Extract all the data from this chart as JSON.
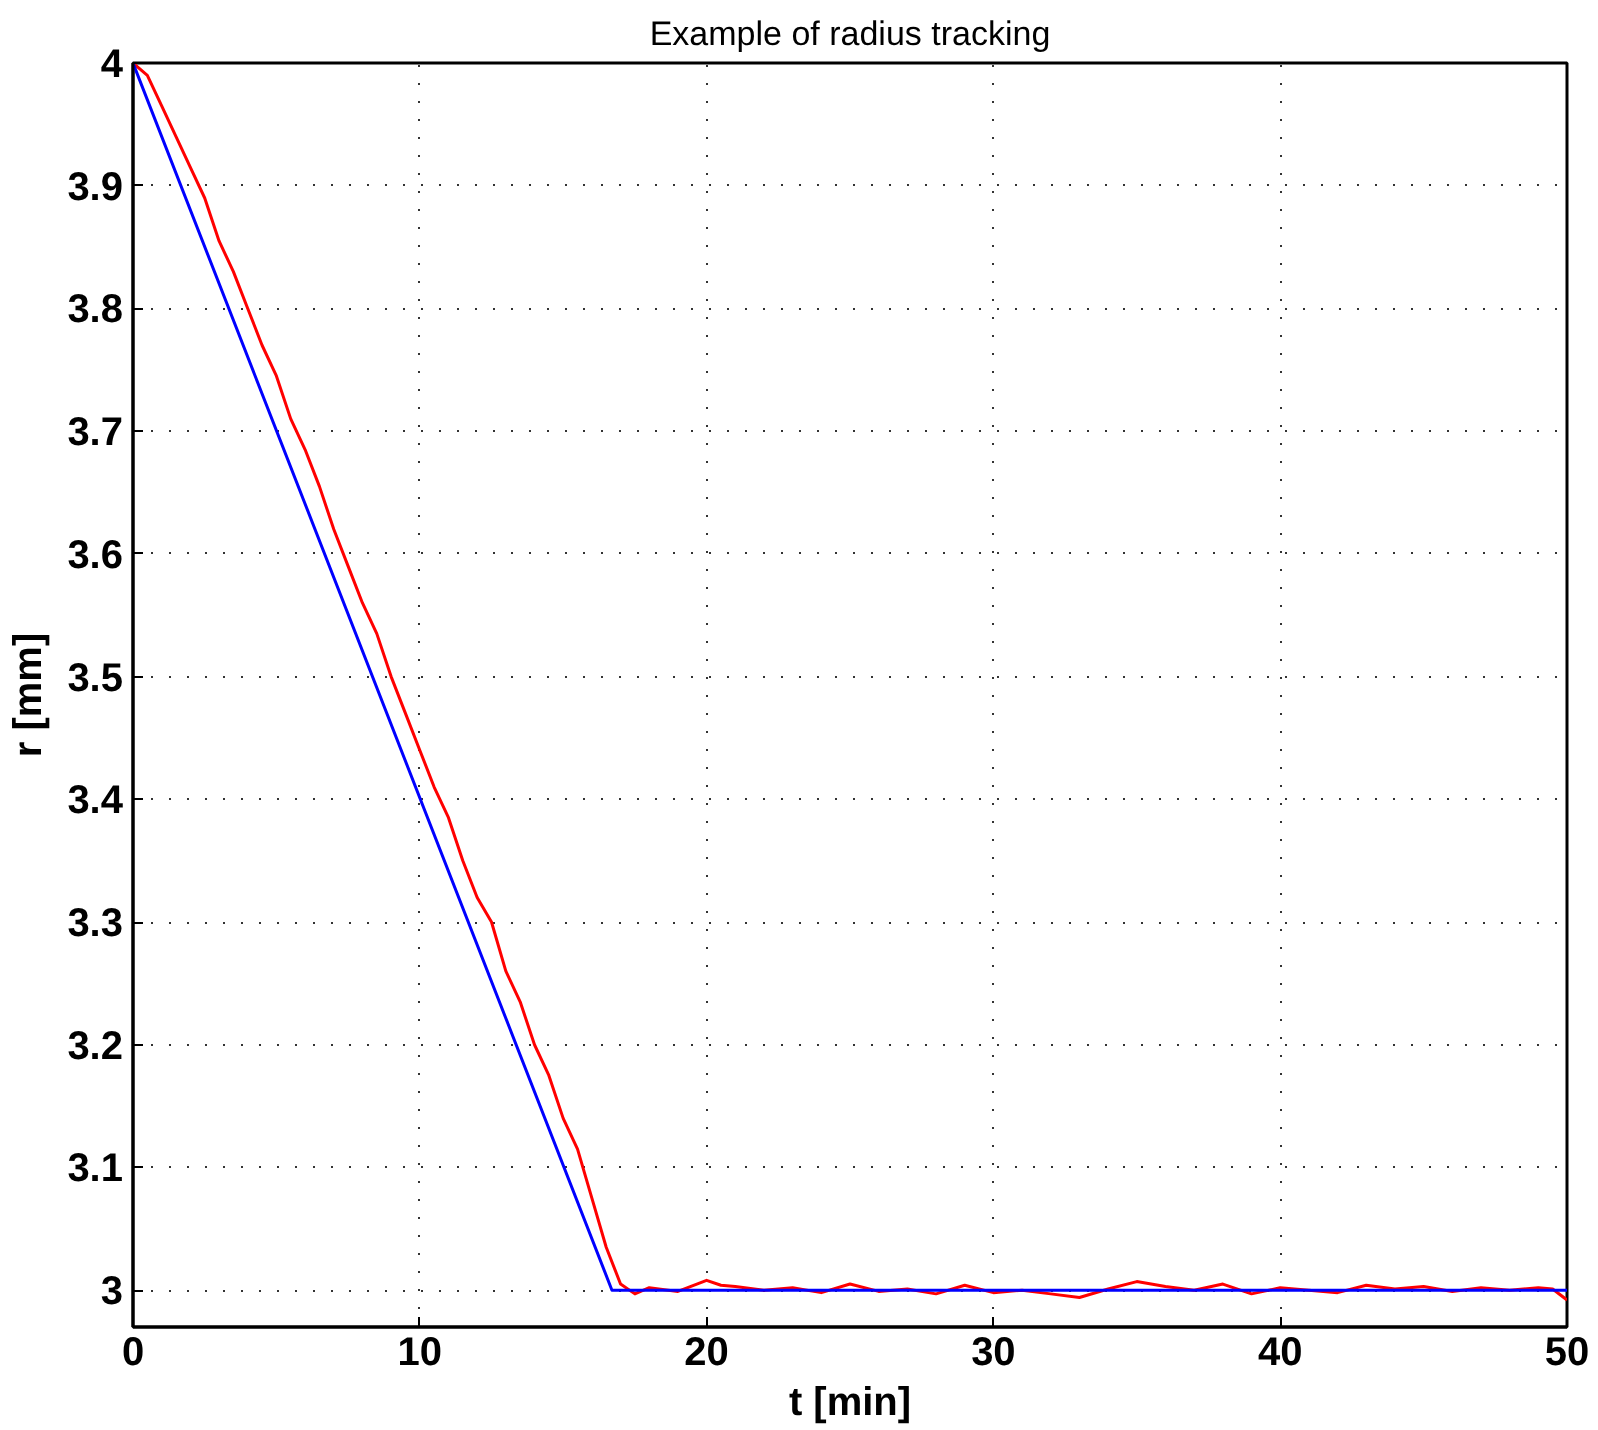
{
  "chart_data": {
    "type": "line",
    "title": "Example of radius tracking",
    "xlabel": "t [min]",
    "ylabel": "r [mm]",
    "xlim": [
      0,
      50
    ],
    "ylim": [
      2.97,
      4
    ],
    "xticks": [
      0,
      10,
      20,
      30,
      40,
      50
    ],
    "yticks": [
      3,
      3.1,
      3.2,
      3.3,
      3.4,
      3.5,
      3.6,
      3.7,
      3.8,
      3.9,
      4
    ],
    "grid": true,
    "line_style": "solid",
    "marker": "none",
    "series": [
      {
        "color": "#ff0000",
        "x": [
          0,
          0.5,
          1,
          1.5,
          2,
          2.5,
          3,
          3.5,
          4,
          4.5,
          5,
          5.5,
          6,
          6.5,
          7,
          7.5,
          8,
          8.5,
          9,
          9.5,
          10,
          10.5,
          11,
          11.5,
          12,
          12.5,
          13,
          13.5,
          14,
          14.5,
          15,
          15.5,
          16,
          16.5,
          17,
          17.5,
          18,
          19,
          20,
          20.5,
          21,
          22,
          23,
          24,
          25,
          26,
          27,
          28,
          29,
          30,
          31,
          32,
          33,
          34,
          35,
          36,
          37,
          38,
          39,
          40,
          41,
          42,
          43,
          44,
          45,
          46,
          47,
          48,
          49,
          49.5,
          50
        ],
        "values": [
          4.0,
          3.99,
          3.965,
          3.94,
          3.915,
          3.89,
          3.855,
          3.83,
          3.8,
          3.77,
          3.745,
          3.71,
          3.685,
          3.655,
          3.62,
          3.59,
          3.56,
          3.535,
          3.5,
          3.47,
          3.44,
          3.41,
          3.385,
          3.35,
          3.32,
          3.3,
          3.26,
          3.235,
          3.2,
          3.175,
          3.14,
          3.115,
          3.075,
          3.035,
          3.005,
          2.997,
          3.002,
          2.999,
          3.008,
          3.004,
          3.003,
          3.0,
          3.002,
          2.998,
          3.005,
          2.999,
          3.001,
          2.997,
          3.004,
          2.998,
          3.0,
          2.997,
          2.994,
          3.001,
          3.007,
          3.003,
          3.0,
          3.005,
          2.997,
          3.002,
          3.0,
          2.998,
          3.004,
          3.001,
          3.003,
          2.999,
          3.002,
          3.0,
          3.002,
          3.001,
          2.992
        ]
      },
      {
        "color": "#0000ff",
        "x": [
          0,
          16.7,
          50
        ],
        "values": [
          4,
          3,
          3
        ]
      }
    ]
  }
}
